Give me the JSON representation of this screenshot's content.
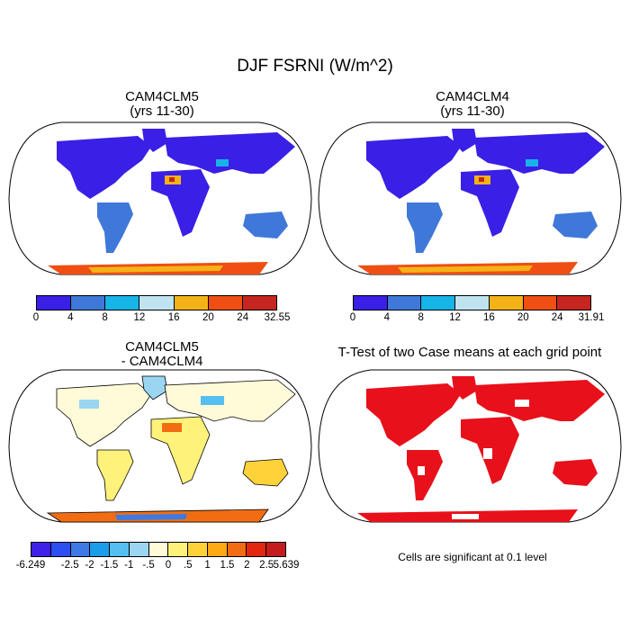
{
  "title": "DJF FSRNI (W/m^2)",
  "panels": {
    "top_left": {
      "line1": "CAM4CLM5",
      "line2": "(yrs 11-30)"
    },
    "top_right": {
      "line1": "CAM4CLM4",
      "line2": "(yrs 11-30)"
    },
    "bottom_left": {
      "line1": "CAM4CLM5",
      "line2": "- CAM4CLM4"
    },
    "bottom_right": {
      "line1": "T-Test of two Case means at each grid point"
    }
  },
  "colorbars": {
    "left": {
      "colors": [
        "#3a1fe6",
        "#3f78d9",
        "#17b4e8",
        "#bfe4f0",
        "#f3b318",
        "#ef4f12",
        "#c7251f"
      ],
      "labels": [
        "0",
        "4",
        "8",
        "12",
        "16",
        "20",
        "24",
        "32.55"
      ]
    },
    "right": {
      "colors": [
        "#3a1fe6",
        "#3f78d9",
        "#17b4e8",
        "#bfe4f0",
        "#f3b318",
        "#ef4f12",
        "#c7251f"
      ],
      "labels": [
        "0",
        "4",
        "8",
        "12",
        "16",
        "20",
        "24",
        "31.91"
      ]
    },
    "diff": {
      "colors": [
        "#3f21e8",
        "#2b4ff0",
        "#3d7ae6",
        "#1c9de9",
        "#54bff0",
        "#9ad6f2",
        "#fffbd9",
        "#fff27a",
        "#ffd23a",
        "#ffa915",
        "#f26d12",
        "#e2260f",
        "#c41c1c"
      ],
      "labels": [
        "-6.249",
        "",
        "-2.5",
        "-2",
        "-1.5",
        "-1",
        "-.5",
        "0",
        ".5",
        "1",
        "1.5",
        "2",
        "2.5",
        "5.639"
      ]
    }
  },
  "note": "Cells are significant at 0.1 level",
  "map_colors": {
    "ocean": "#ffffff",
    "land_base_abs": "#3a1fe6",
    "land_mid_abs": "#3f78d9",
    "land_base_diff": "#fffbd9",
    "significant": "#e8101a",
    "antarctic_hot": "#ef4f12"
  }
}
